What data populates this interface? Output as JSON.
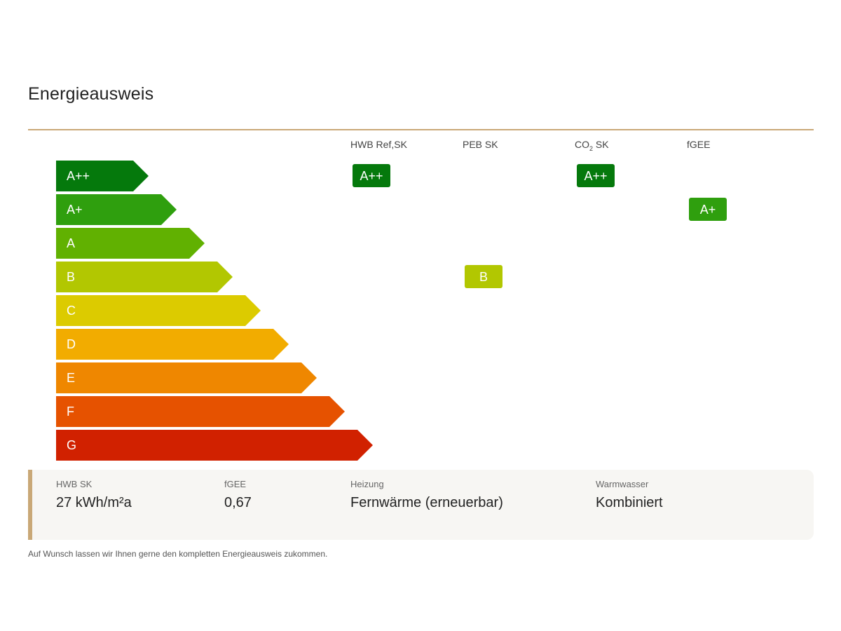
{
  "title": "Energieausweis",
  "chart_data": {
    "type": "bar",
    "classes": [
      {
        "label": "A++",
        "color": "#05790c"
      },
      {
        "label": "A+",
        "color": "#2f9f0e"
      },
      {
        "label": "A",
        "color": "#61b101"
      },
      {
        "label": "B",
        "color": "#b2c701"
      },
      {
        "label": "C",
        "color": "#dccb00"
      },
      {
        "label": "D",
        "color": "#f2ac00"
      },
      {
        "label": "E",
        "color": "#ef8700"
      },
      {
        "label": "F",
        "color": "#e65200"
      },
      {
        "label": "G",
        "color": "#d12100"
      }
    ],
    "columns": [
      {
        "main": "HWB Ref,SK",
        "sub": "",
        "rating": "A++"
      },
      {
        "main": "PEB SK",
        "sub": "",
        "rating": "B"
      },
      {
        "main": "CO",
        "sub": "2",
        "tail": " SK",
        "rating": "A++"
      },
      {
        "main": "fGEE",
        "sub": "",
        "rating": "A+"
      }
    ]
  },
  "info": [
    {
      "label": "HWB SK",
      "value": "27 kWh/m²a"
    },
    {
      "label": "fGEE",
      "value": "0,67"
    },
    {
      "label": "Heizung",
      "value": "Fernwärme (erneuerbar)"
    },
    {
      "label": "Warmwasser",
      "value": "Kombiniert"
    }
  ],
  "footnote": "Auf Wunsch lassen wir Ihnen gerne den kompletten Energieausweis zukommen."
}
